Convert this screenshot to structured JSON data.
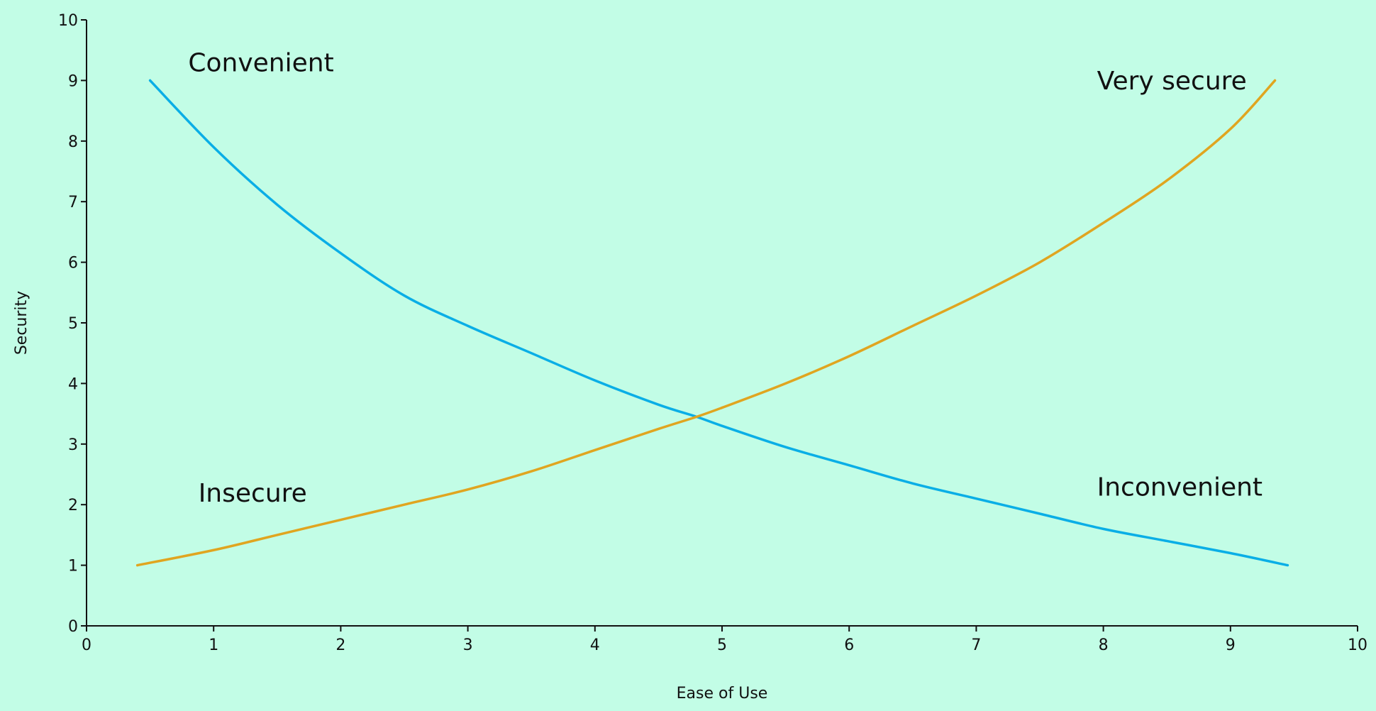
{
  "chart_data": {
    "type": "line",
    "xlabel": "Ease of Use",
    "ylabel": "Security",
    "xlim": [
      0,
      10
    ],
    "ylim": [
      0,
      10
    ],
    "x_ticks": [
      "0",
      "1",
      "2",
      "3",
      "4",
      "5",
      "6",
      "7",
      "8",
      "9",
      "10"
    ],
    "y_ticks": [
      "0",
      "1",
      "2",
      "3",
      "4",
      "5",
      "6",
      "7",
      "8",
      "9",
      "10"
    ],
    "grid": false,
    "background_color": "#c2fde6",
    "series": [
      {
        "color": "#0aaee6",
        "x": [
          0.5,
          1.0,
          1.5,
          2.0,
          2.5,
          3.0,
          3.5,
          4.0,
          4.5,
          4.8,
          5.0,
          5.5,
          6.0,
          6.5,
          7.0,
          7.5,
          8.0,
          8.5,
          9.0,
          9.45
        ],
        "y": [
          9.0,
          7.9,
          6.95,
          6.15,
          5.45,
          4.95,
          4.5,
          4.05,
          3.65,
          3.45,
          3.3,
          2.95,
          2.65,
          2.35,
          2.1,
          1.85,
          1.6,
          1.4,
          1.2,
          1.0
        ]
      },
      {
        "color": "#e0a520",
        "x": [
          0.4,
          1.0,
          1.5,
          2.0,
          2.5,
          3.0,
          3.5,
          4.0,
          4.5,
          4.8,
          5.0,
          5.5,
          6.0,
          6.5,
          7.0,
          7.5,
          8.0,
          8.5,
          9.0,
          9.35
        ],
        "y": [
          1.0,
          1.25,
          1.5,
          1.75,
          2.0,
          2.25,
          2.55,
          2.9,
          3.25,
          3.45,
          3.6,
          4.0,
          4.45,
          4.95,
          5.45,
          6.0,
          6.65,
          7.35,
          8.2,
          9.0
        ]
      }
    ],
    "annotations": [
      {
        "text": "Convenient",
        "x": 0.8,
        "y": 9.15
      },
      {
        "text": "Very secure",
        "x": 7.95,
        "y": 8.85
      },
      {
        "text": "Insecure",
        "x": 0.88,
        "y": 2.05
      },
      {
        "text": "Inconvenient",
        "x": 7.95,
        "y": 2.15
      }
    ]
  }
}
